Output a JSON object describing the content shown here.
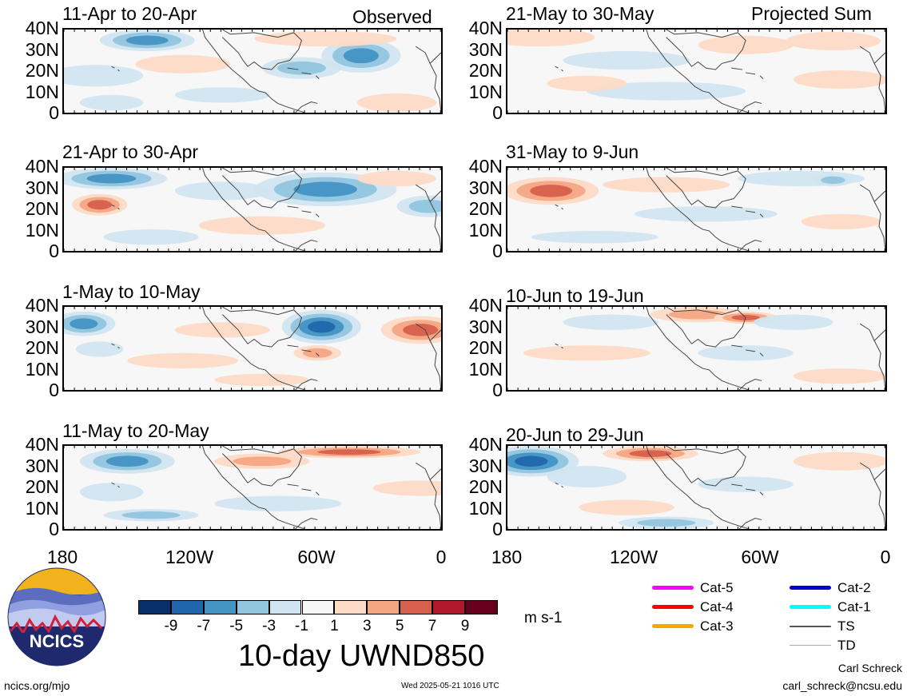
{
  "headers": {
    "left": "Observed",
    "right": "Projected Sum"
  },
  "panels": [
    {
      "title": "11-Apr to 20-Apr"
    },
    {
      "title": "21-Apr to 30-Apr"
    },
    {
      "title": "1-May to 10-May"
    },
    {
      "title": "11-May to 20-May"
    },
    {
      "title": "21-May to 30-May"
    },
    {
      "title": "31-May to 9-Jun"
    },
    {
      "title": "10-Jun to 19-Jun"
    },
    {
      "title": "20-Jun to 29-Jun"
    }
  ],
  "lat_labels": [
    "40N",
    "30N",
    "20N",
    "10N",
    "0"
  ],
  "lon_labels": [
    "180",
    "120W",
    "60W",
    "0"
  ],
  "colorbar": {
    "colors": [
      "#08306b",
      "#2166ac",
      "#4393c3",
      "#92c5de",
      "#d1e5f0",
      "#f7f7f7",
      "#fddbc7",
      "#f4a582",
      "#d6604d",
      "#b2182b",
      "#67001f"
    ],
    "ticks": [
      "-9",
      "-7",
      "-5",
      "-3",
      "-1",
      "1",
      "3",
      "5",
      "7",
      "9"
    ],
    "units": "m s-1"
  },
  "main_title": "10-day UWND850",
  "legend": [
    {
      "label": "Cat-5",
      "color": "#ff00ff"
    },
    {
      "label": "Cat-4",
      "color": "#ff0000"
    },
    {
      "label": "Cat-3",
      "color": "#ffa500"
    },
    {
      "label": "Cat-2",
      "color": "#0000cc"
    },
    {
      "label": "Cat-1",
      "color": "#00ffff"
    },
    {
      "label": "TS",
      "color": "#555555"
    },
    {
      "label": "TD",
      "color": "#aaaaaa"
    }
  ],
  "logo": {
    "text": "NCICS"
  },
  "footer": {
    "url": "ncics.org/mjo",
    "timestamp": "Wed 2025-05-21 1016 UTC",
    "author": "Carl Schreck",
    "email": "carl_schreck@ncsu.edu"
  }
}
